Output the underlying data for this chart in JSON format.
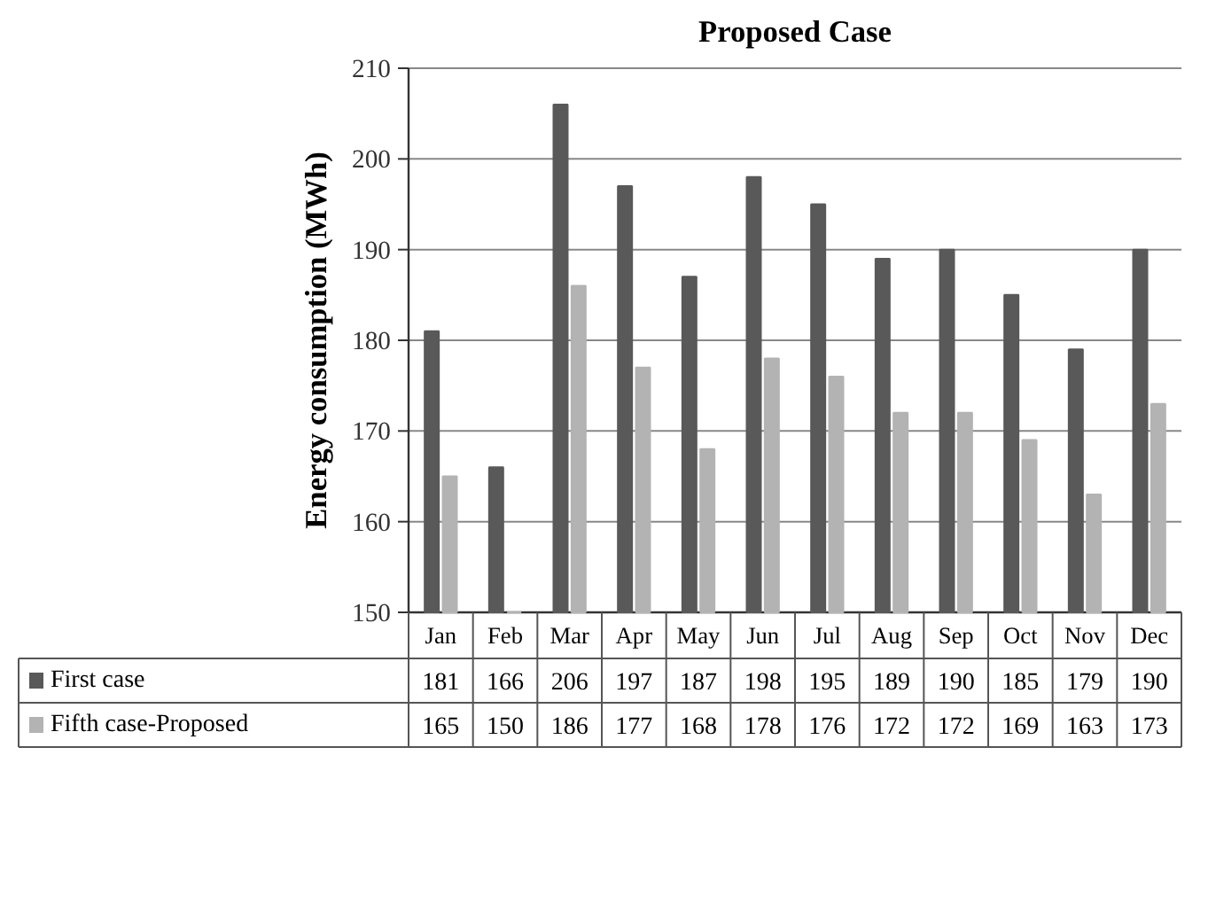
{
  "chart_data": {
    "type": "bar",
    "title": "Proposed Case",
    "ylabel": "Energy consumption (MWh)",
    "categories": [
      "Jan",
      "Feb",
      "Mar",
      "Apr",
      "May",
      "Jun",
      "Jul",
      "Aug",
      "Sep",
      "Oct",
      "Nov",
      "Dec"
    ],
    "series": [
      {
        "name": "First case",
        "color": "#595959",
        "values": [
          181,
          166,
          206,
          197,
          187,
          198,
          195,
          189,
          190,
          185,
          179,
          190
        ]
      },
      {
        "name": "Fifth case-Proposed",
        "color": "#b3b3b3",
        "values": [
          165,
          150,
          186,
          177,
          168,
          178,
          176,
          172,
          172,
          169,
          163,
          173
        ]
      }
    ],
    "ylim": [
      150,
      210
    ],
    "yticks": [
      150,
      160,
      170,
      180,
      190,
      200,
      210
    ],
    "grid": "y",
    "legend": "bottom",
    "data_labels": true
  }
}
